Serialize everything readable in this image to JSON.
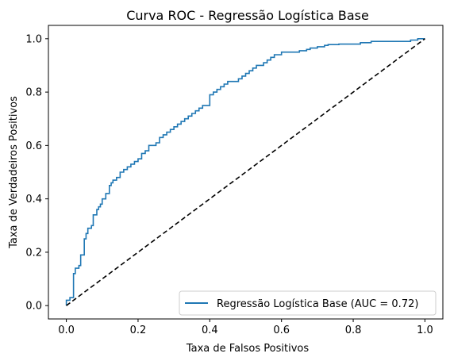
{
  "chart_data": {
    "type": "line",
    "title": "Curva ROC - Regressão Logística Base",
    "xlabel": "Taxa de Falsos Positivos",
    "ylabel": "Taxa de Verdadeiros Positivos",
    "xlim": [
      -0.05,
      1.05
    ],
    "ylim": [
      -0.05,
      1.05
    ],
    "xticks": [
      0.0,
      0.2,
      0.4,
      0.6,
      0.8,
      1.0
    ],
    "xtick_labels": [
      "0.0",
      "0.2",
      "0.4",
      "0.6",
      "0.8",
      "1.0"
    ],
    "yticks": [
      0.0,
      0.2,
      0.4,
      0.6,
      0.8,
      1.0
    ],
    "ytick_labels": [
      "0.0",
      "0.2",
      "0.4",
      "0.6",
      "0.8",
      "1.0"
    ],
    "grid": false,
    "legend_position": "lower-right",
    "series": [
      {
        "name": "Regressão Logística Base (AUC = 0.72)",
        "color": "#1f77b4",
        "style": "solid",
        "step": true,
        "x": [
          0.0,
          0.01,
          0.02,
          0.025,
          0.035,
          0.04,
          0.05,
          0.055,
          0.06,
          0.07,
          0.075,
          0.085,
          0.09,
          0.095,
          0.1,
          0.11,
          0.12,
          0.125,
          0.13,
          0.14,
          0.15,
          0.16,
          0.17,
          0.18,
          0.19,
          0.2,
          0.21,
          0.22,
          0.23,
          0.24,
          0.25,
          0.26,
          0.27,
          0.28,
          0.29,
          0.3,
          0.31,
          0.32,
          0.33,
          0.34,
          0.35,
          0.36,
          0.37,
          0.38,
          0.39,
          0.4,
          0.41,
          0.42,
          0.43,
          0.44,
          0.45,
          0.48,
          0.49,
          0.5,
          0.51,
          0.52,
          0.53,
          0.55,
          0.56,
          0.57,
          0.58,
          0.59,
          0.6,
          0.63,
          0.65,
          0.67,
          0.68,
          0.7,
          0.72,
          0.73,
          0.76,
          0.8,
          0.82,
          0.85,
          0.9,
          0.93,
          0.96,
          0.98,
          1.0
        ],
        "y": [
          0.0,
          0.02,
          0.03,
          0.12,
          0.14,
          0.15,
          0.19,
          0.25,
          0.27,
          0.29,
          0.3,
          0.34,
          0.36,
          0.37,
          0.38,
          0.4,
          0.42,
          0.45,
          0.46,
          0.47,
          0.48,
          0.5,
          0.51,
          0.52,
          0.53,
          0.54,
          0.55,
          0.57,
          0.58,
          0.6,
          0.6,
          0.61,
          0.63,
          0.64,
          0.65,
          0.66,
          0.67,
          0.68,
          0.69,
          0.7,
          0.71,
          0.72,
          0.73,
          0.74,
          0.75,
          0.75,
          0.79,
          0.8,
          0.81,
          0.82,
          0.83,
          0.84,
          0.85,
          0.86,
          0.87,
          0.88,
          0.89,
          0.9,
          0.91,
          0.92,
          0.93,
          0.94,
          0.94,
          0.95,
          0.95,
          0.955,
          0.96,
          0.965,
          0.97,
          0.975,
          0.978,
          0.98,
          0.98,
          0.985,
          0.99,
          0.99,
          0.99,
          0.995,
          1.0
        ]
      },
      {
        "name": "",
        "color": "#000000",
        "style": "dashed",
        "step": false,
        "x": [
          0.0,
          1.0
        ],
        "y": [
          0.0,
          1.0
        ]
      }
    ]
  }
}
